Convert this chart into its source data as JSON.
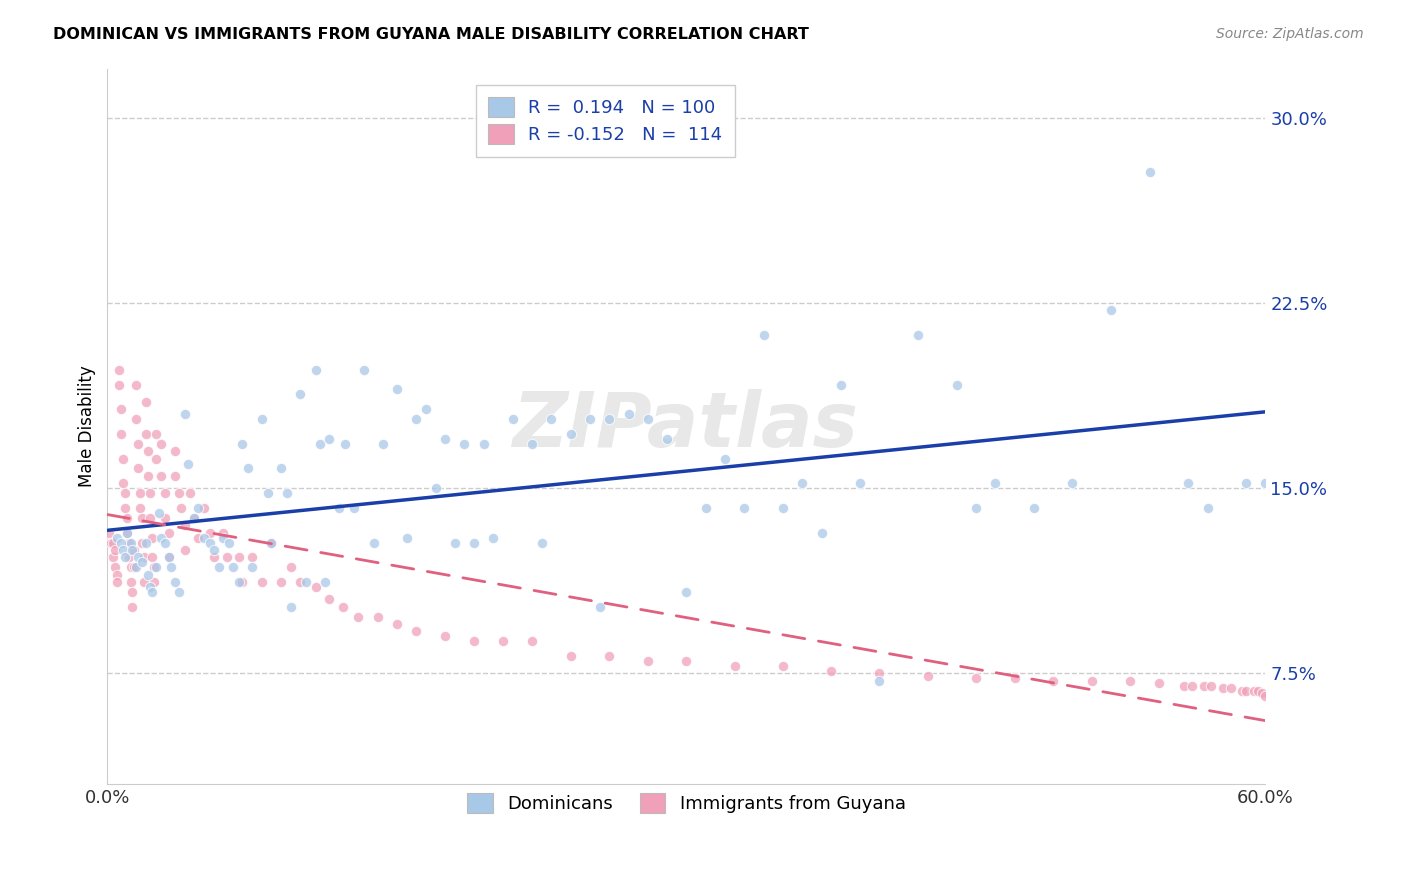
{
  "title": "DOMINICAN VS IMMIGRANTS FROM GUYANA MALE DISABILITY CORRELATION CHART",
  "source": "Source: ZipAtlas.com",
  "ylabel": "Male Disability",
  "ytick_values": [
    0.075,
    0.15,
    0.225,
    0.3
  ],
  "xmin": 0.0,
  "xmax": 0.6,
  "ymin": 0.03,
  "ymax": 0.32,
  "blue_color": "#a8c8e8",
  "pink_color": "#f0a0b8",
  "blue_line_color": "#1a3fa8",
  "pink_line_color": "#e06080",
  "watermark": "ZIPatlas",
  "dominicans_r": 0.194,
  "dominicans_n": 100,
  "guyana_r": -0.152,
  "guyana_n": 114,
  "dominicans_x": [
    0.005,
    0.007,
    0.008,
    0.009,
    0.01,
    0.012,
    0.013,
    0.015,
    0.016,
    0.018,
    0.02,
    0.021,
    0.022,
    0.023,
    0.025,
    0.027,
    0.028,
    0.03,
    0.032,
    0.033,
    0.035,
    0.037,
    0.04,
    0.042,
    0.045,
    0.047,
    0.05,
    0.053,
    0.055,
    0.058,
    0.06,
    0.063,
    0.065,
    0.068,
    0.07,
    0.073,
    0.075,
    0.08,
    0.083,
    0.085,
    0.09,
    0.093,
    0.095,
    0.1,
    0.103,
    0.108,
    0.11,
    0.113,
    0.115,
    0.12,
    0.123,
    0.128,
    0.133,
    0.138,
    0.143,
    0.15,
    0.155,
    0.16,
    0.165,
    0.17,
    0.175,
    0.18,
    0.185,
    0.19,
    0.195,
    0.2,
    0.21,
    0.22,
    0.225,
    0.23,
    0.24,
    0.25,
    0.255,
    0.26,
    0.27,
    0.28,
    0.29,
    0.3,
    0.31,
    0.32,
    0.33,
    0.34,
    0.35,
    0.36,
    0.37,
    0.38,
    0.39,
    0.4,
    0.42,
    0.44,
    0.45,
    0.46,
    0.48,
    0.5,
    0.52,
    0.54,
    0.56,
    0.57,
    0.59,
    0.6
  ],
  "dominicans_y": [
    0.13,
    0.128,
    0.125,
    0.122,
    0.132,
    0.128,
    0.125,
    0.118,
    0.122,
    0.12,
    0.128,
    0.115,
    0.11,
    0.108,
    0.118,
    0.14,
    0.13,
    0.128,
    0.122,
    0.118,
    0.112,
    0.108,
    0.18,
    0.16,
    0.138,
    0.142,
    0.13,
    0.128,
    0.125,
    0.118,
    0.13,
    0.128,
    0.118,
    0.112,
    0.168,
    0.158,
    0.118,
    0.178,
    0.148,
    0.128,
    0.158,
    0.148,
    0.102,
    0.188,
    0.112,
    0.198,
    0.168,
    0.112,
    0.17,
    0.142,
    0.168,
    0.142,
    0.198,
    0.128,
    0.168,
    0.19,
    0.13,
    0.178,
    0.182,
    0.15,
    0.17,
    0.128,
    0.168,
    0.128,
    0.168,
    0.13,
    0.178,
    0.168,
    0.128,
    0.178,
    0.172,
    0.178,
    0.102,
    0.178,
    0.18,
    0.178,
    0.17,
    0.108,
    0.142,
    0.162,
    0.142,
    0.212,
    0.142,
    0.152,
    0.132,
    0.192,
    0.152,
    0.072,
    0.212,
    0.192,
    0.142,
    0.152,
    0.142,
    0.152,
    0.222,
    0.278,
    0.152,
    0.142,
    0.152,
    0.152
  ],
  "guyana_x": [
    0.001,
    0.002,
    0.003,
    0.003,
    0.004,
    0.004,
    0.005,
    0.005,
    0.006,
    0.006,
    0.007,
    0.007,
    0.008,
    0.008,
    0.009,
    0.009,
    0.01,
    0.01,
    0.011,
    0.011,
    0.012,
    0.012,
    0.013,
    0.013,
    0.014,
    0.014,
    0.015,
    0.015,
    0.016,
    0.016,
    0.017,
    0.017,
    0.018,
    0.018,
    0.019,
    0.019,
    0.02,
    0.02,
    0.021,
    0.021,
    0.022,
    0.022,
    0.023,
    0.023,
    0.024,
    0.024,
    0.025,
    0.025,
    0.028,
    0.028,
    0.03,
    0.03,
    0.032,
    0.032,
    0.035,
    0.035,
    0.037,
    0.038,
    0.04,
    0.04,
    0.043,
    0.045,
    0.047,
    0.05,
    0.053,
    0.055,
    0.06,
    0.062,
    0.068,
    0.07,
    0.075,
    0.08,
    0.085,
    0.09,
    0.095,
    0.1,
    0.108,
    0.115,
    0.122,
    0.13,
    0.14,
    0.15,
    0.16,
    0.175,
    0.19,
    0.205,
    0.22,
    0.24,
    0.26,
    0.28,
    0.3,
    0.325,
    0.35,
    0.375,
    0.4,
    0.425,
    0.45,
    0.47,
    0.49,
    0.51,
    0.53,
    0.545,
    0.558,
    0.562,
    0.568,
    0.572,
    0.578,
    0.582,
    0.588,
    0.59,
    0.594,
    0.596,
    0.598,
    0.6
  ],
  "guyana_y": [
    0.132,
    0.128,
    0.128,
    0.122,
    0.125,
    0.118,
    0.115,
    0.112,
    0.198,
    0.192,
    0.182,
    0.172,
    0.162,
    0.152,
    0.148,
    0.142,
    0.138,
    0.132,
    0.128,
    0.122,
    0.118,
    0.112,
    0.108,
    0.102,
    0.125,
    0.118,
    0.192,
    0.178,
    0.168,
    0.158,
    0.148,
    0.142,
    0.138,
    0.128,
    0.122,
    0.112,
    0.185,
    0.172,
    0.165,
    0.155,
    0.148,
    0.138,
    0.13,
    0.122,
    0.118,
    0.112,
    0.172,
    0.162,
    0.168,
    0.155,
    0.148,
    0.138,
    0.132,
    0.122,
    0.165,
    0.155,
    0.148,
    0.142,
    0.135,
    0.125,
    0.148,
    0.138,
    0.13,
    0.142,
    0.132,
    0.122,
    0.132,
    0.122,
    0.122,
    0.112,
    0.122,
    0.112,
    0.128,
    0.112,
    0.118,
    0.112,
    0.11,
    0.105,
    0.102,
    0.098,
    0.098,
    0.095,
    0.092,
    0.09,
    0.088,
    0.088,
    0.088,
    0.082,
    0.082,
    0.08,
    0.08,
    0.078,
    0.078,
    0.076,
    0.075,
    0.074,
    0.073,
    0.073,
    0.072,
    0.072,
    0.072,
    0.071,
    0.07,
    0.07,
    0.07,
    0.07,
    0.069,
    0.069,
    0.068,
    0.068,
    0.068,
    0.068,
    0.067,
    0.066
  ]
}
